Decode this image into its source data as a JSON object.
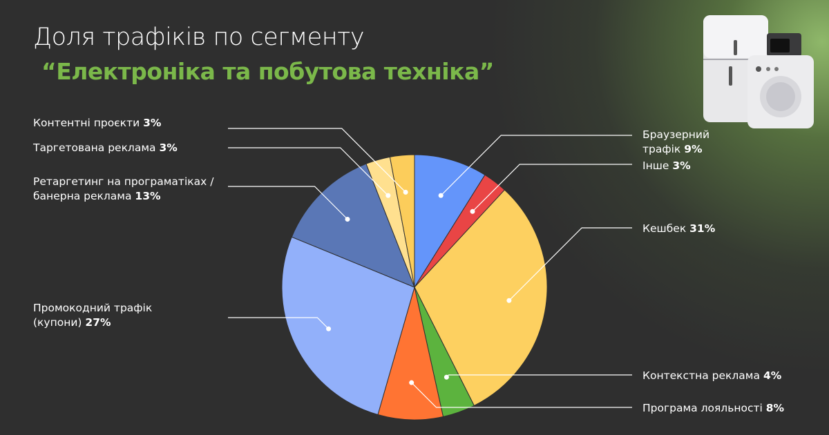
{
  "chart_data": {
    "type": "pie",
    "title": "Доля трафіків по сегменту",
    "subtitle": "“Електроніка та побутова техніка”",
    "categories": [
      "Браузерний трафік",
      "Інше",
      "Кешбек",
      "Контекстна реклама",
      "Програма лояльності",
      "Промокодний трафік (купони)",
      "Ретаргетинг на програматіках / банерна реклама",
      "Таргетована реклама",
      "Контентні проєкти"
    ],
    "values": [
      9,
      3,
      31,
      4,
      8,
      27,
      13,
      3,
      3
    ],
    "value_labels": [
      "9%",
      "3%",
      "31%",
      "4%",
      "8%",
      "27%",
      "13%",
      "3%",
      "3%"
    ],
    "colors": [
      "#6495fa",
      "#e94545",
      "#fdd060",
      "#5cb33e",
      "#ff7433",
      "#92b0fa",
      "#5a77b6",
      "#ffe08f",
      "#fccd5b"
    ]
  }
}
